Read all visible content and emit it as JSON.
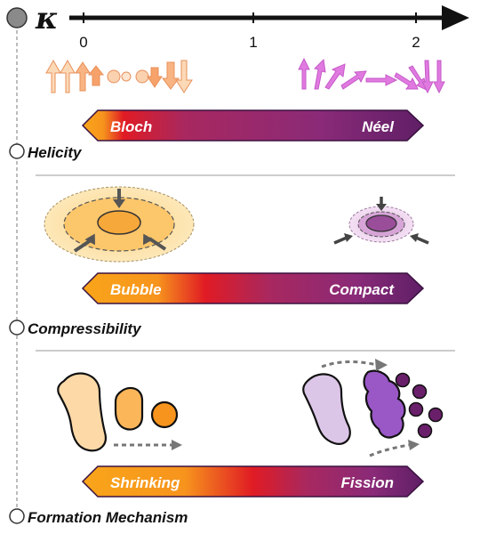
{
  "axis": {
    "symbol": "κ",
    "ticks": [
      "0",
      "1",
      "2"
    ]
  },
  "sections": [
    {
      "label": "Helicity",
      "left": "Bloch",
      "right": "Néel"
    },
    {
      "label": "Compressibility",
      "left": "Bubble",
      "right": "Compact"
    },
    {
      "label": "Formation Mechanism",
      "left": "Shrinking",
      "right": "Fission"
    }
  ],
  "colors": {
    "orange_light": "#fdd9a8",
    "orange": "#f7a83a",
    "red": "#e01b24",
    "purple": "#8c2a7a",
    "purple_dark": "#5a1a5e",
    "violet_light": "#dcc6e8",
    "violet": "#9a57c6",
    "magenta": "#e07ae0"
  },
  "icons": {
    "timeline_start": "gray-circle-icon",
    "section_marker": "hollow-circle-icon",
    "axis_arrow": "arrow-right-icon",
    "flow_arrow": "dotted-arrow-icon"
  }
}
